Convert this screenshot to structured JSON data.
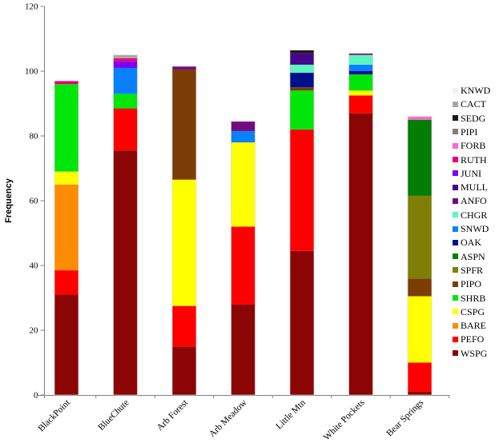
{
  "chart_data": {
    "type": "bar",
    "stacked": true,
    "title": "",
    "xlabel": "",
    "ylabel": "Frequency",
    "ylim": [
      0,
      120
    ],
    "yticks": [
      0,
      20,
      40,
      60,
      80,
      100,
      120
    ],
    "grid": false,
    "legend_position": "right",
    "axis_color": "#808080",
    "categories": [
      "BlackPoint",
      "BlueChute",
      "Arb Forest",
      "Arb Meadow",
      "Little Mtn",
      "White Pockets",
      "Bear Springs"
    ],
    "series": [
      {
        "name": "WSPG",
        "color": "#8C0505",
        "values": [
          31,
          75.5,
          15,
          28,
          44.5,
          87,
          1
        ]
      },
      {
        "name": "PEFO",
        "color": "#FF0000",
        "values": [
          7.5,
          13,
          12.5,
          24,
          37.5,
          5.5,
          9
        ]
      },
      {
        "name": "BARE",
        "color": "#FF8C05",
        "values": [
          26.5,
          0,
          0,
          0,
          0,
          0,
          0
        ]
      },
      {
        "name": "CSPG",
        "color": "#FFFF00",
        "values": [
          4,
          0,
          39,
          26,
          0,
          1.5,
          20.5
        ]
      },
      {
        "name": "SHRB",
        "color": "#00E60A",
        "values": [
          27,
          4.5,
          0,
          0,
          12,
          5,
          0
        ]
      },
      {
        "name": "PIPO",
        "color": "#7B3D05",
        "values": [
          0,
          0,
          34,
          0,
          1,
          0,
          5.5
        ]
      },
      {
        "name": "SPFR",
        "color": "#7F7F05",
        "values": [
          0,
          0,
          0,
          0,
          0,
          0,
          25.5
        ]
      },
      {
        "name": "ASPN",
        "color": "#037D03",
        "values": [
          0,
          0,
          0,
          0,
          0,
          0,
          23.5
        ]
      },
      {
        "name": "OAK",
        "color": "#00108C",
        "values": [
          0,
          0,
          0,
          0,
          4.5,
          1,
          0
        ]
      },
      {
        "name": "SNWD",
        "color": "#0A80FF",
        "values": [
          0,
          8,
          0,
          3.5,
          0,
          2,
          0
        ]
      },
      {
        "name": "CHGR",
        "color": "#5FF5BE",
        "values": [
          0,
          0,
          0,
          0,
          2.5,
          3,
          0
        ]
      },
      {
        "name": "ANFO",
        "color": "#730B80",
        "values": [
          0,
          0,
          1,
          3,
          0,
          0.5,
          0
        ]
      },
      {
        "name": "MULL",
        "color": "#45058C",
        "values": [
          0,
          0,
          0,
          0,
          3.5,
          0,
          0
        ]
      },
      {
        "name": "JUNI",
        "color": "#7D00F5",
        "values": [
          0,
          2,
          0,
          0,
          0,
          0,
          0
        ]
      },
      {
        "name": "RUTH",
        "color": "#E80078",
        "values": [
          1,
          1,
          0,
          0,
          0,
          0,
          0
        ]
      },
      {
        "name": "FORB",
        "color": "#FF66CC",
        "values": [
          0,
          0,
          0,
          0,
          0,
          0,
          1
        ]
      },
      {
        "name": "PIPI",
        "color": "#7F7F7F",
        "values": [
          0,
          0,
          0,
          0,
          0,
          0,
          0
        ]
      },
      {
        "name": "SEDG",
        "color": "#1A1A1A",
        "values": [
          0,
          0,
          0,
          0,
          1,
          0,
          0
        ]
      },
      {
        "name": "CACT",
        "color": "#A6A6A6",
        "values": [
          0,
          1,
          0,
          0,
          0,
          0,
          0
        ]
      },
      {
        "name": "KNWD",
        "color": "#F0F0F0",
        "values": [
          0,
          0,
          0,
          0,
          0,
          0,
          0
        ]
      }
    ],
    "legend_order_top_to_bottom": [
      "KNWD",
      "CACT",
      "SEDG",
      "PIPI",
      "FORB",
      "RUTH",
      "JUNI",
      "MULL",
      "ANFO",
      "CHGR",
      "SNWD",
      "OAK",
      "ASPN",
      "SPFR",
      "PIPO",
      "SHRB",
      "CSPG",
      "BARE",
      "PEFO",
      "WSPG"
    ]
  }
}
